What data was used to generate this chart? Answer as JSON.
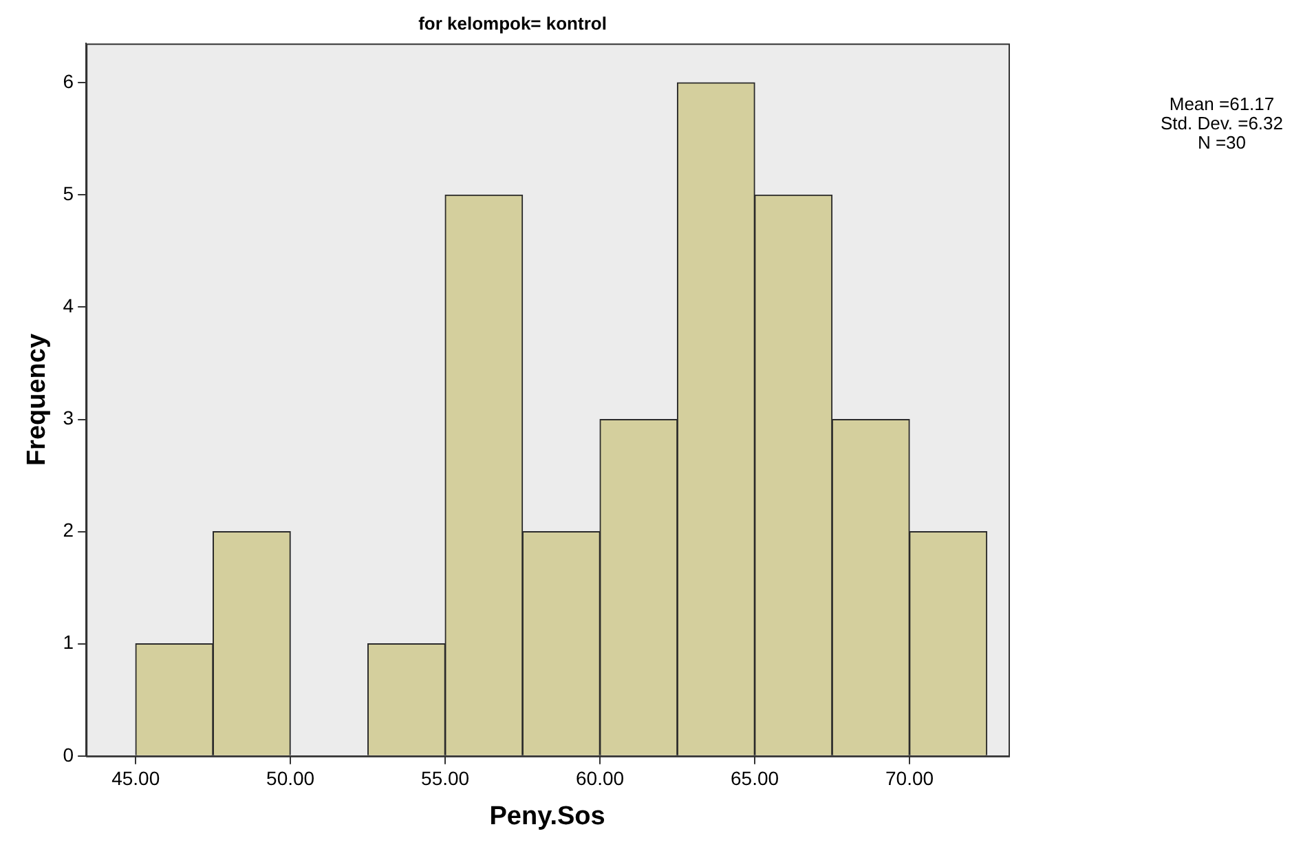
{
  "chart_data": {
    "type": "histogram",
    "title": "for kelompok= kontrol",
    "xlabel": "Peny.Sos",
    "ylabel": "Frequency",
    "bins": [
      45,
      47.5,
      50,
      52.5,
      55,
      57.5,
      60,
      62.5,
      65,
      67.5,
      70,
      72.5
    ],
    "values": [
      1,
      2,
      0,
      1,
      5,
      2,
      3,
      6,
      5,
      3,
      2
    ],
    "color": "#d4cf9d",
    "xlim": [
      43.4,
      73.2
    ],
    "xticks": [
      {
        "value": 45,
        "label": "45.00"
      },
      {
        "value": 50,
        "label": "50.00"
      },
      {
        "value": 55,
        "label": "55.00"
      },
      {
        "value": 60,
        "label": "60.00"
      },
      {
        "value": 65,
        "label": "65.00"
      },
      {
        "value": 70,
        "label": "70.00"
      }
    ],
    "ylim": [
      0,
      6.35
    ],
    "yticks": [
      0,
      1,
      2,
      3,
      4,
      5,
      6
    ],
    "grid": false,
    "legend": false,
    "annotations": [
      "Mean =61.17",
      "Std. Dev. =6.32",
      "N =30"
    ]
  }
}
